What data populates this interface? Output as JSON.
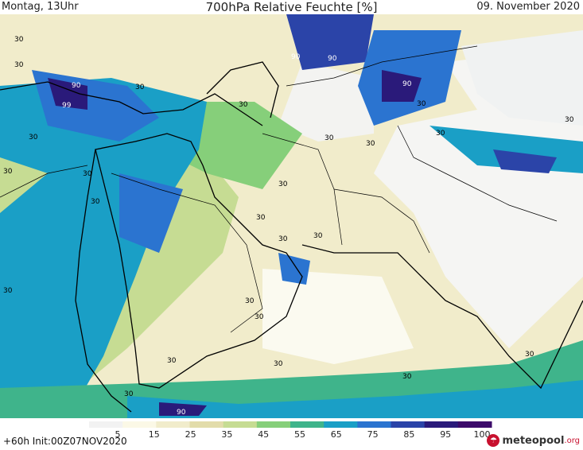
{
  "header": {
    "left": "Montag, 13Uhr",
    "title": "700hPa Relative Feuchte [%]",
    "right": "09. November 2020"
  },
  "footer": {
    "left": "+60h  Init:00Z07NOV2020",
    "brand_name": "meteopool",
    "brand_suffix": ".org",
    "brand_icon": "meteopool-logo-icon"
  },
  "legend": {
    "ticks": [
      "5",
      "15",
      "25",
      "35",
      "45",
      "55",
      "65",
      "75",
      "85",
      "95",
      "100"
    ],
    "colors": [
      "#f2f2f2",
      "#fbf8e6",
      "#f1eccb",
      "#e2dcaa",
      "#c6dc93",
      "#86cf7a",
      "#3fb48b",
      "#1a9fc6",
      "#2b74d0",
      "#2b44a8",
      "#2a1a7a",
      "#3c0a6a"
    ]
  },
  "map": {
    "contour_labels": [
      "30",
      "30",
      "90",
      "99",
      "30",
      "30",
      "30",
      "30",
      "90",
      "90",
      "90",
      "30",
      "30",
      "30",
      "30",
      "30",
      "30",
      "30",
      "30",
      "30",
      "30",
      "30",
      "30",
      "30",
      "30",
      "30",
      "30",
      "30",
      "30",
      "90",
      "30"
    ]
  }
}
